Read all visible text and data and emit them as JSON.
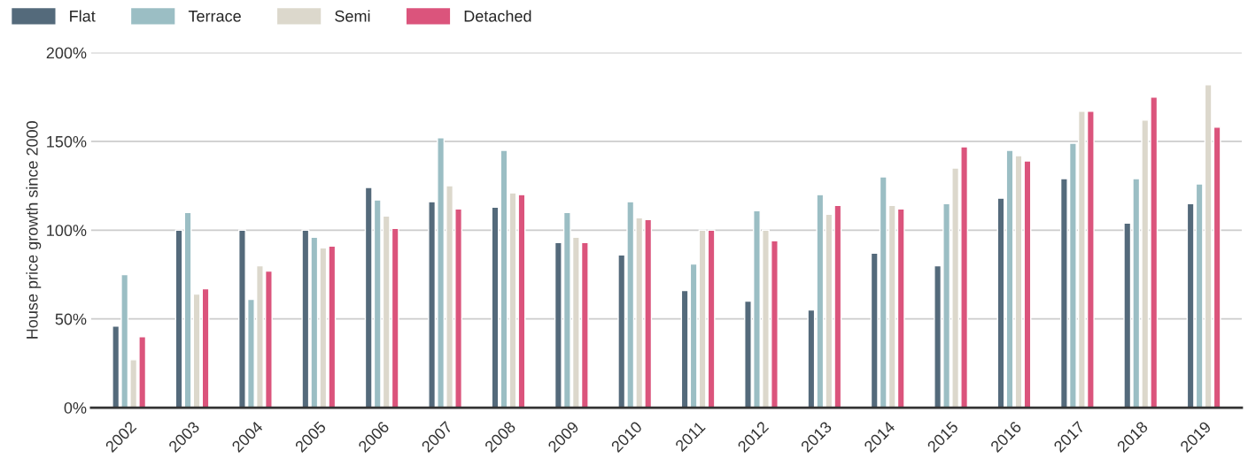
{
  "chart_data": {
    "type": "bar",
    "ylabel": "House price growth since 2000",
    "categories": [
      "2002",
      "2003",
      "2004",
      "2005",
      "2006",
      "2007",
      "2008",
      "2009",
      "2010",
      "2011",
      "2012",
      "2013",
      "2014",
      "2015",
      "2016",
      "2017",
      "2018",
      "2019"
    ],
    "series": [
      {
        "name": "Flat",
        "color": "#546a7b",
        "values": [
          46,
          100,
          100,
          100,
          124,
          116,
          113,
          93,
          86,
          66,
          60,
          55,
          87,
          80,
          118,
          129,
          104,
          115
        ]
      },
      {
        "name": "Terrace",
        "color": "#9bbec4",
        "values": [
          75,
          110,
          61,
          96,
          117,
          152,
          145,
          110,
          116,
          81,
          111,
          120,
          130,
          115,
          145,
          149,
          129,
          126
        ]
      },
      {
        "name": "Semi",
        "color": "#dcd8cc",
        "values": [
          27,
          64,
          80,
          90,
          108,
          125,
          121,
          96,
          107,
          100,
          100,
          109,
          114,
          135,
          142,
          167,
          162,
          182
        ]
      },
      {
        "name": "Detached",
        "color": "#db547c",
        "values": [
          40,
          67,
          77,
          91,
          101,
          112,
          120,
          93,
          106,
          100,
          94,
          114,
          112,
          147,
          139,
          167,
          175,
          158
        ]
      }
    ],
    "ylim": [
      0,
      200
    ],
    "yticks": [
      {
        "value": 0,
        "label": "0%"
      },
      {
        "value": 50,
        "label": "50%"
      },
      {
        "value": 100,
        "label": "100%"
      },
      {
        "value": 150,
        "label": "150%"
      },
      {
        "value": 200,
        "label": "200%"
      }
    ],
    "grid": "y",
    "legend": "top left"
  }
}
